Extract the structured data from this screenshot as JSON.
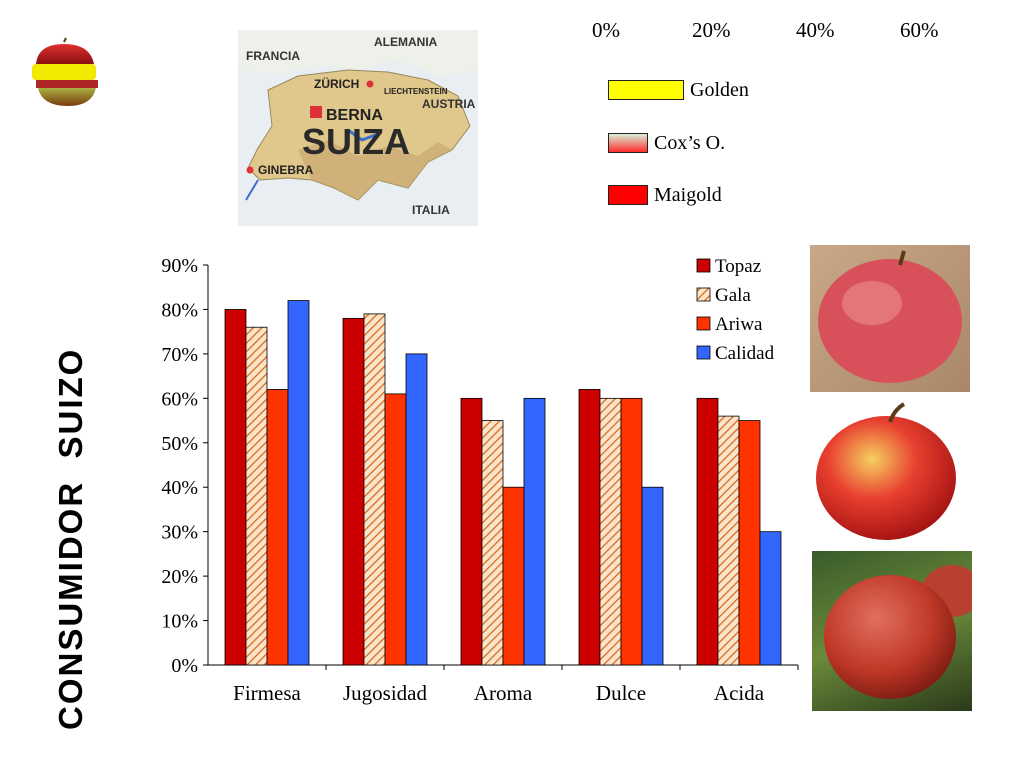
{
  "slide": {
    "side_title": "CONSUMIDOR  SUIZO"
  },
  "top_axis": {
    "labels": [
      "0%",
      "20%",
      "40%",
      "60%"
    ]
  },
  "top_legend": {
    "items": [
      {
        "label": "Golden",
        "color": "#ffff00"
      },
      {
        "label": "Cox’s O.",
        "color": "gradient-green-red"
      },
      {
        "label": "Maigold",
        "color": "#ff0000"
      }
    ]
  },
  "map": {
    "labels": {
      "francia": "FRANCIA",
      "alemania": "ALEMANIA",
      "zurich": "ZÜRICH",
      "liechtenstein": "LIECHTENSTEIN",
      "austria": "AUSTRIA",
      "berna": "BERNA",
      "suiza": "SUIZA",
      "ginebra": "GINEBRA",
      "italia": "ITALIA"
    }
  },
  "chart_data": {
    "type": "bar",
    "categories": [
      "Firmesa",
      "Jugosidad",
      "Aroma",
      "Dulce",
      "Acida"
    ],
    "series": [
      {
        "name": "Topaz",
        "color": "#cc0000",
        "pattern": "solid",
        "values": [
          80,
          78,
          60,
          62,
          60
        ]
      },
      {
        "name": "Gala",
        "color": "#f4a460",
        "pattern": "hatched",
        "values": [
          76,
          79,
          55,
          60,
          56
        ]
      },
      {
        "name": "Ariwa",
        "color": "#ff3300",
        "pattern": "solid",
        "values": [
          62,
          61,
          40,
          60,
          55
        ]
      },
      {
        "name": "Calidad",
        "color": "#3366ff",
        "pattern": "solid",
        "values": [
          82,
          70,
          60,
          40,
          30
        ]
      }
    ],
    "ylim": [
      0,
      90
    ],
    "yticks": [
      "0%",
      "10%",
      "20%",
      "30%",
      "40%",
      "50%",
      "60%",
      "70%",
      "80%",
      "90%"
    ],
    "legend_position": "top-right",
    "grid": false
  }
}
